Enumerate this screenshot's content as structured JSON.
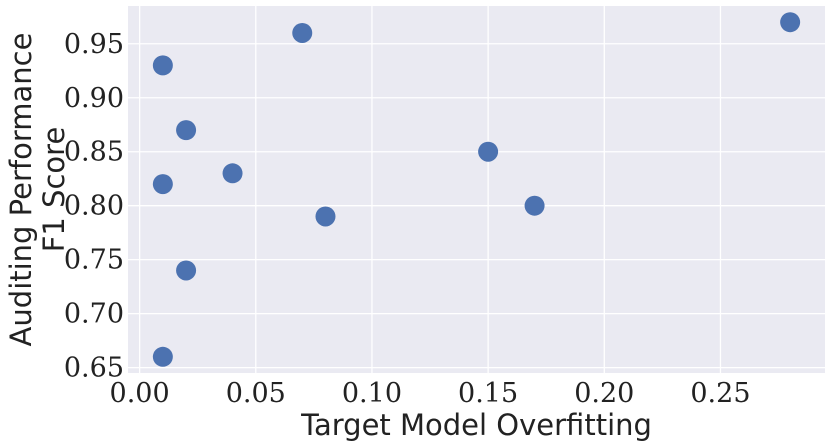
{
  "chart_data": {
    "type": "scatter",
    "xlabel": "Target Model Overfitting",
    "ylabel_lines": [
      "Auditing Performance",
      "F1 Score"
    ],
    "xlim": [
      -0.005,
      0.295
    ],
    "ylim": [
      0.645,
      0.985
    ],
    "xticks": [
      0.0,
      0.05,
      0.1,
      0.15,
      0.2,
      0.25
    ],
    "xtick_labels": [
      "0.00",
      "0.05",
      "0.10",
      "0.15",
      "0.20",
      "0.25"
    ],
    "yticks": [
      0.65,
      0.7,
      0.75,
      0.8,
      0.85,
      0.9,
      0.95
    ],
    "ytick_labels": [
      "0.65",
      "0.70",
      "0.75",
      "0.80",
      "0.85",
      "0.90",
      "0.95"
    ],
    "grid": true,
    "points": [
      {
        "x": 0.01,
        "y": 0.93
      },
      {
        "x": 0.01,
        "y": 0.82
      },
      {
        "x": 0.01,
        "y": 0.66
      },
      {
        "x": 0.02,
        "y": 0.87
      },
      {
        "x": 0.02,
        "y": 0.74
      },
      {
        "x": 0.04,
        "y": 0.83
      },
      {
        "x": 0.07,
        "y": 0.96
      },
      {
        "x": 0.08,
        "y": 0.79
      },
      {
        "x": 0.15,
        "y": 0.85
      },
      {
        "x": 0.17,
        "y": 0.8
      },
      {
        "x": 0.28,
        "y": 0.97
      }
    ],
    "colors": {
      "background": "#eaeaf2",
      "grid": "#ffffff",
      "marker": "#4c72b0"
    }
  }
}
